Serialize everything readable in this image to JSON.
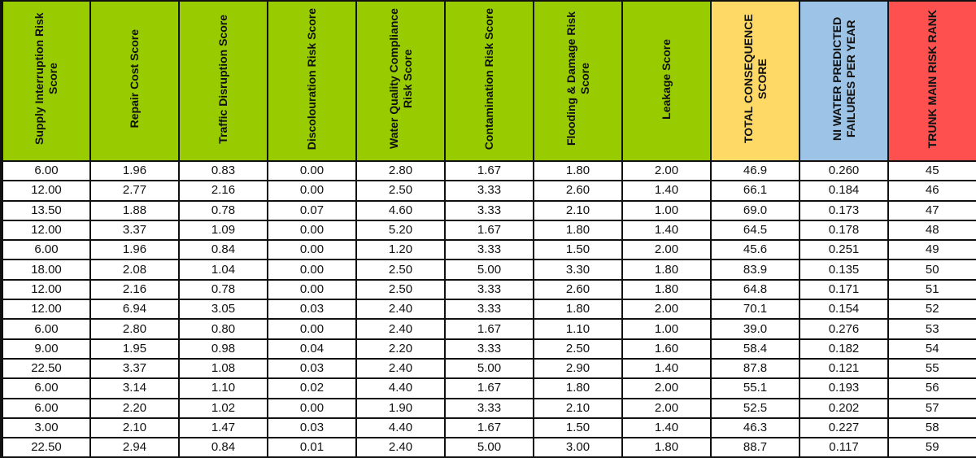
{
  "columns": [
    {
      "label": "Supply Interruption Risk Score",
      "color": "#99cc00"
    },
    {
      "label": "Repair Cost Score",
      "color": "#99cc00"
    },
    {
      "label": "Traffic Disruption Score",
      "color": "#99cc00"
    },
    {
      "label": "Discolouration Risk Score",
      "color": "#99cc00"
    },
    {
      "label": "Water Quality Compliance Risk Score",
      "color": "#99cc00"
    },
    {
      "label": "Contamination Risk Score",
      "color": "#99cc00"
    },
    {
      "label": "Flooding & Damage Risk Score",
      "color": "#99cc00"
    },
    {
      "label": "Leakage Score",
      "color": "#99cc00"
    },
    {
      "label": "TOTAL CONSEQUENCE SCORE",
      "color": "#ffd966"
    },
    {
      "label": "NI WATER PREDICTED FAILURES PER YEAR",
      "color": "#9dc3e6"
    },
    {
      "label": "TRUNK MAIN RISK RANK",
      "color": "#ff5050"
    }
  ],
  "rows": [
    [
      "6.00",
      "1.96",
      "0.83",
      "0.00",
      "2.80",
      "1.67",
      "1.80",
      "2.00",
      "46.9",
      "0.260",
      "45"
    ],
    [
      "12.00",
      "2.77",
      "2.16",
      "0.00",
      "2.50",
      "3.33",
      "2.60",
      "1.40",
      "66.1",
      "0.184",
      "46"
    ],
    [
      "13.50",
      "1.88",
      "0.78",
      "0.07",
      "4.60",
      "3.33",
      "2.10",
      "1.00",
      "69.0",
      "0.173",
      "47"
    ],
    [
      "12.00",
      "3.37",
      "1.09",
      "0.00",
      "5.20",
      "1.67",
      "1.80",
      "1.40",
      "64.5",
      "0.178",
      "48"
    ],
    [
      "6.00",
      "1.96",
      "0.84",
      "0.00",
      "1.20",
      "3.33",
      "1.50",
      "2.00",
      "45.6",
      "0.251",
      "49"
    ],
    [
      "18.00",
      "2.08",
      "1.04",
      "0.00",
      "2.50",
      "5.00",
      "3.30",
      "1.80",
      "83.9",
      "0.135",
      "50"
    ],
    [
      "12.00",
      "2.16",
      "0.78",
      "0.00",
      "2.50",
      "3.33",
      "2.60",
      "1.80",
      "64.8",
      "0.171",
      "51"
    ],
    [
      "12.00",
      "6.94",
      "3.05",
      "0.03",
      "2.40",
      "3.33",
      "1.80",
      "2.00",
      "70.1",
      "0.154",
      "52"
    ],
    [
      "6.00",
      "2.80",
      "0.80",
      "0.00",
      "2.40",
      "1.67",
      "1.10",
      "1.00",
      "39.0",
      "0.276",
      "53"
    ],
    [
      "9.00",
      "1.95",
      "0.98",
      "0.04",
      "2.20",
      "3.33",
      "2.50",
      "1.60",
      "58.4",
      "0.182",
      "54"
    ],
    [
      "22.50",
      "3.37",
      "1.08",
      "0.03",
      "2.40",
      "5.00",
      "2.90",
      "1.40",
      "87.8",
      "0.121",
      "55"
    ],
    [
      "6.00",
      "3.14",
      "1.10",
      "0.02",
      "4.40",
      "1.67",
      "1.80",
      "2.00",
      "55.1",
      "0.193",
      "56"
    ],
    [
      "6.00",
      "2.20",
      "1.02",
      "0.00",
      "1.90",
      "3.33",
      "2.10",
      "2.00",
      "52.5",
      "0.202",
      "57"
    ],
    [
      "3.00",
      "2.10",
      "1.47",
      "0.03",
      "4.40",
      "1.67",
      "1.50",
      "1.40",
      "46.3",
      "0.227",
      "58"
    ],
    [
      "22.50",
      "2.94",
      "0.84",
      "0.01",
      "2.40",
      "5.00",
      "3.00",
      "1.80",
      "88.7",
      "0.117",
      "59"
    ]
  ]
}
